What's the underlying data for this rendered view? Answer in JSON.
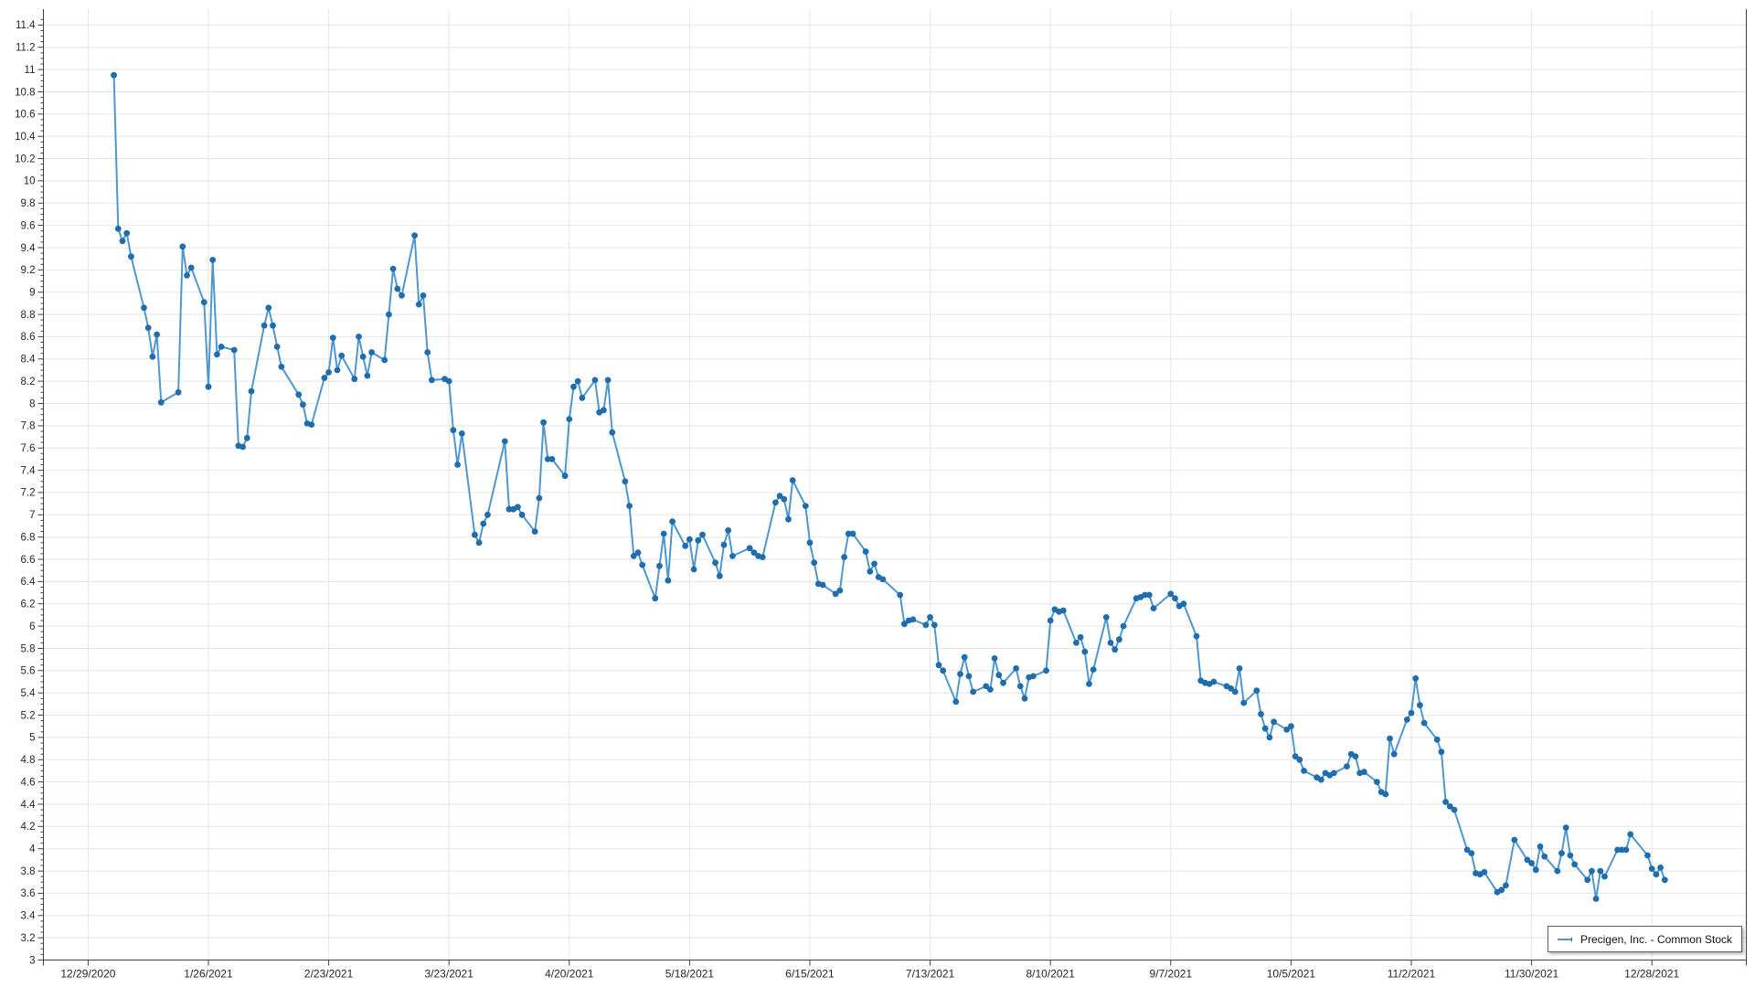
{
  "chart_data": {
    "type": "line",
    "title": "",
    "xlabel": "",
    "ylabel": "",
    "grid": true,
    "legend_position": "bottom-right",
    "ylim": [
      3,
      11.5
    ],
    "y_major_step": 0.2,
    "y_minor_step": 0.05,
    "colors": {
      "line": "#4f97cf",
      "marker": "#1f6dad",
      "grid": "#e5e5e5",
      "axis": "#404040",
      "tick_label": "#262626"
    },
    "x_tick_labels": [
      "12/29/2020",
      "1/26/2021",
      "2/23/2021",
      "3/23/2021",
      "4/20/2021",
      "5/18/2021",
      "6/15/2021",
      "7/13/2021",
      "8/10/2021",
      "9/7/2021",
      "10/5/2021",
      "11/2/2021",
      "11/30/2021",
      "12/28/2021"
    ],
    "y_tick_labels": [
      "3",
      "3.2",
      "3.4",
      "3.6",
      "3.8",
      "4",
      "4.2",
      "4.4",
      "4.6",
      "4.8",
      "5",
      "5.2",
      "5.4",
      "5.6",
      "5.8",
      "6",
      "6.2",
      "6.4",
      "6.6",
      "6.8",
      "7",
      "7.2",
      "7.4",
      "7.6",
      "7.8",
      "8",
      "8.2",
      "8.4",
      "8.6",
      "8.8",
      "9",
      "9.2",
      "9.4",
      "9.6",
      "9.8",
      "10",
      "10.2",
      "10.4",
      "10.6",
      "10.8",
      "11",
      "11.2",
      "11.4"
    ],
    "series": [
      {
        "name": "Precigen, Inc. - Common Stock",
        "dates": [
          "1/4/2021",
          "1/5/2021",
          "1/6/2021",
          "1/7/2021",
          "1/8/2021",
          "1/11/2021",
          "1/12/2021",
          "1/13/2021",
          "1/14/2021",
          "1/15/2021",
          "1/19/2021",
          "1/20/2021",
          "1/21/2021",
          "1/22/2021",
          "1/25/2021",
          "1/26/2021",
          "1/27/2021",
          "1/28/2021",
          "1/29/2021",
          "2/1/2021",
          "2/2/2021",
          "2/3/2021",
          "2/4/2021",
          "2/5/2021",
          "2/8/2021",
          "2/9/2021",
          "2/10/2021",
          "2/11/2021",
          "2/12/2021",
          "2/16/2021",
          "2/17/2021",
          "2/18/2021",
          "2/19/2021",
          "2/22/2021",
          "2/23/2021",
          "2/24/2021",
          "2/25/2021",
          "2/26/2021",
          "3/1/2021",
          "3/2/2021",
          "3/3/2021",
          "3/4/2021",
          "3/5/2021",
          "3/8/2021",
          "3/9/2021",
          "3/10/2021",
          "3/11/2021",
          "3/12/2021",
          "3/15/2021",
          "3/16/2021",
          "3/17/2021",
          "3/18/2021",
          "3/19/2021",
          "3/22/2021",
          "3/23/2021",
          "3/24/2021",
          "3/25/2021",
          "3/26/2021",
          "3/29/2021",
          "3/30/2021",
          "3/31/2021",
          "4/1/2021",
          "4/5/2021",
          "4/6/2021",
          "4/7/2021",
          "4/8/2021",
          "4/9/2021",
          "4/12/2021",
          "4/13/2021",
          "4/14/2021",
          "4/15/2021",
          "4/16/2021",
          "4/19/2021",
          "4/20/2021",
          "4/21/2021",
          "4/22/2021",
          "4/23/2021",
          "4/26/2021",
          "4/27/2021",
          "4/28/2021",
          "4/29/2021",
          "4/30/2021",
          "5/3/2021",
          "5/4/2021",
          "5/5/2021",
          "5/6/2021",
          "5/7/2021",
          "5/10/2021",
          "5/11/2021",
          "5/12/2021",
          "5/13/2021",
          "5/14/2021",
          "5/17/2021",
          "5/18/2021",
          "5/19/2021",
          "5/20/2021",
          "5/21/2021",
          "5/24/2021",
          "5/25/2021",
          "5/26/2021",
          "5/27/2021",
          "5/28/2021",
          "6/1/2021",
          "6/2/2021",
          "6/3/2021",
          "6/4/2021",
          "6/7/2021",
          "6/8/2021",
          "6/9/2021",
          "6/10/2021",
          "6/11/2021",
          "6/14/2021",
          "6/15/2021",
          "6/16/2021",
          "6/17/2021",
          "6/18/2021",
          "6/21/2021",
          "6/22/2021",
          "6/23/2021",
          "6/24/2021",
          "6/25/2021",
          "6/28/2021",
          "6/29/2021",
          "6/30/2021",
          "7/1/2021",
          "7/2/2021",
          "7/6/2021",
          "7/7/2021",
          "7/8/2021",
          "7/9/2021",
          "7/12/2021",
          "7/13/2021",
          "7/14/2021",
          "7/15/2021",
          "7/16/2021",
          "7/19/2021",
          "7/20/2021",
          "7/21/2021",
          "7/22/2021",
          "7/23/2021",
          "7/26/2021",
          "7/27/2021",
          "7/28/2021",
          "7/29/2021",
          "7/30/2021",
          "8/2/2021",
          "8/3/2021",
          "8/4/2021",
          "8/5/2021",
          "8/6/2021",
          "8/9/2021",
          "8/10/2021",
          "8/11/2021",
          "8/12/2021",
          "8/13/2021",
          "8/16/2021",
          "8/17/2021",
          "8/18/2021",
          "8/19/2021",
          "8/20/2021",
          "8/23/2021",
          "8/24/2021",
          "8/25/2021",
          "8/26/2021",
          "8/27/2021",
          "8/30/2021",
          "8/31/2021",
          "9/1/2021",
          "9/2/2021",
          "9/3/2021",
          "9/7/2021",
          "9/8/2021",
          "9/9/2021",
          "9/10/2021",
          "9/13/2021",
          "9/14/2021",
          "9/15/2021",
          "9/16/2021",
          "9/17/2021",
          "9/20/2021",
          "9/21/2021",
          "9/22/2021",
          "9/23/2021",
          "9/24/2021",
          "9/27/2021",
          "9/28/2021",
          "9/29/2021",
          "9/30/2021",
          "10/1/2021",
          "10/4/2021",
          "10/5/2021",
          "10/6/2021",
          "10/7/2021",
          "10/8/2021",
          "10/11/2021",
          "10/12/2021",
          "10/13/2021",
          "10/14/2021",
          "10/15/2021",
          "10/18/2021",
          "10/19/2021",
          "10/20/2021",
          "10/21/2021",
          "10/22/2021",
          "10/25/2021",
          "10/26/2021",
          "10/27/2021",
          "10/28/2021",
          "10/29/2021",
          "11/1/2021",
          "11/2/2021",
          "11/3/2021",
          "11/4/2021",
          "11/5/2021",
          "11/8/2021",
          "11/9/2021",
          "11/10/2021",
          "11/11/2021",
          "11/12/2021",
          "11/15/2021",
          "11/16/2021",
          "11/17/2021",
          "11/18/2021",
          "11/19/2021",
          "11/22/2021",
          "11/23/2021",
          "11/24/2021",
          "11/26/2021",
          "11/29/2021",
          "11/30/2021",
          "12/1/2021",
          "12/2/2021",
          "12/3/2021",
          "12/6/2021",
          "12/7/2021",
          "12/8/2021",
          "12/9/2021",
          "12/10/2021",
          "12/13/2021",
          "12/14/2021",
          "12/15/2021",
          "12/16/2021",
          "12/17/2021",
          "12/20/2021",
          "12/21/2021",
          "12/22/2021",
          "12/23/2021",
          "12/27/2021",
          "12/28/2021",
          "12/29/2021",
          "12/30/2021",
          "12/31/2021"
        ],
        "values": [
          10.95,
          9.57,
          9.46,
          9.53,
          9.32,
          8.86,
          8.68,
          8.42,
          8.62,
          8.01,
          8.1,
          9.41,
          9.15,
          9.22,
          8.91,
          8.15,
          9.29,
          8.44,
          8.51,
          8.48,
          7.62,
          7.61,
          7.69,
          8.11,
          8.7,
          8.86,
          8.7,
          8.51,
          8.33,
          8.08,
          7.99,
          7.82,
          7.81,
          8.23,
          8.28,
          8.59,
          8.3,
          8.43,
          8.22,
          8.6,
          8.42,
          8.25,
          8.46,
          8.39,
          8.8,
          9.21,
          9.03,
          8.97,
          9.51,
          8.89,
          8.97,
          8.46,
          8.21,
          8.22,
          8.2,
          7.76,
          7.45,
          7.73,
          6.82,
          6.75,
          6.92,
          7.0,
          7.66,
          7.05,
          7.05,
          7.07,
          7.0,
          6.85,
          7.15,
          7.83,
          7.5,
          7.5,
          7.35,
          7.86,
          8.15,
          8.2,
          8.05,
          8.21,
          7.92,
          7.94,
          8.21,
          7.74,
          7.3,
          7.08,
          6.63,
          6.66,
          6.55,
          6.25,
          6.54,
          6.83,
          6.41,
          6.94,
          6.72,
          6.78,
          6.51,
          6.77,
          6.82,
          6.57,
          6.45,
          6.73,
          6.86,
          6.63,
          6.7,
          6.66,
          6.63,
          6.62,
          7.11,
          7.17,
          7.14,
          6.96,
          7.31,
          7.08,
          6.75,
          6.57,
          6.38,
          6.37,
          6.29,
          6.32,
          6.62,
          6.83,
          6.83,
          6.67,
          6.49,
          6.56,
          6.44,
          6.42,
          6.28,
          6.02,
          6.05,
          6.06,
          6.01,
          6.08,
          6.01,
          5.65,
          5.6,
          5.32,
          5.57,
          5.72,
          5.55,
          5.41,
          5.46,
          5.43,
          5.71,
          5.56,
          5.49,
          5.62,
          5.46,
          5.35,
          5.54,
          5.55,
          5.6,
          6.05,
          6.15,
          6.13,
          6.14,
          5.85,
          5.9,
          5.77,
          5.48,
          5.61,
          6.08,
          5.85,
          5.79,
          5.88,
          6.0,
          6.25,
          6.26,
          6.28,
          6.28,
          6.16,
          6.29,
          6.25,
          6.18,
          6.2,
          5.91,
          5.51,
          5.49,
          5.48,
          5.5,
          5.46,
          5.44,
          5.41,
          5.62,
          5.31,
          5.42,
          5.21,
          5.08,
          5.0,
          5.14,
          5.07,
          5.1,
          4.83,
          4.8,
          4.7,
          4.64,
          4.62,
          4.68,
          4.66,
          4.68,
          4.74,
          4.85,
          4.83,
          4.68,
          4.69,
          4.6,
          4.51,
          4.49,
          4.99,
          4.85,
          5.16,
          5.22,
          5.53,
          5.29,
          5.13,
          4.98,
          4.87,
          4.42,
          4.38,
          4.35,
          3.99,
          3.96,
          3.78,
          3.77,
          3.79,
          3.61,
          3.63,
          3.67,
          4.08,
          3.9,
          3.87,
          3.81,
          4.02,
          3.93,
          3.8,
          3.96,
          4.19,
          3.94,
          3.86,
          3.72,
          3.8,
          3.55,
          3.8,
          3.75,
          3.99,
          3.99,
          3.99,
          4.13,
          3.94,
          3.82,
          3.77,
          3.83,
          3.72
        ]
      }
    ]
  }
}
